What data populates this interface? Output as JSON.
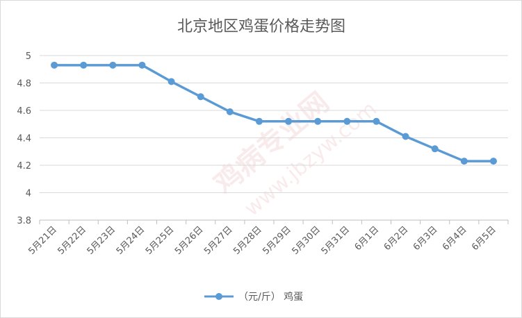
{
  "chart_data": {
    "type": "line",
    "title": "北京地区鸡蛋价格走势图",
    "xlabel": "",
    "ylabel": "",
    "categories": [
      "5月21日",
      "5月22日",
      "5月23日",
      "5月24日",
      "5月25日",
      "5月26日",
      "5月27日",
      "5月28日",
      "5月29日",
      "5月30日",
      "5月31日",
      "6月1日",
      "6月2日",
      "6月3日",
      "6月4日",
      "6月5日"
    ],
    "series": [
      {
        "name": "（元/斤） 鸡蛋",
        "color": "#5b9bd5",
        "values": [
          4.93,
          4.93,
          4.93,
          4.93,
          4.81,
          4.7,
          4.59,
          4.52,
          4.52,
          4.52,
          4.52,
          4.52,
          4.41,
          4.32,
          4.23,
          4.23
        ]
      }
    ],
    "ylim": [
      3.8,
      5
    ],
    "yticks": [
      "3.8",
      "4",
      "4.2",
      "4.4",
      "4.6",
      "4.8",
      "5"
    ],
    "grid": "horizontal",
    "legend_position": "bottom"
  },
  "watermark": {
    "text": "鸡病专业网",
    "url": "www.jbzyw.com"
  }
}
